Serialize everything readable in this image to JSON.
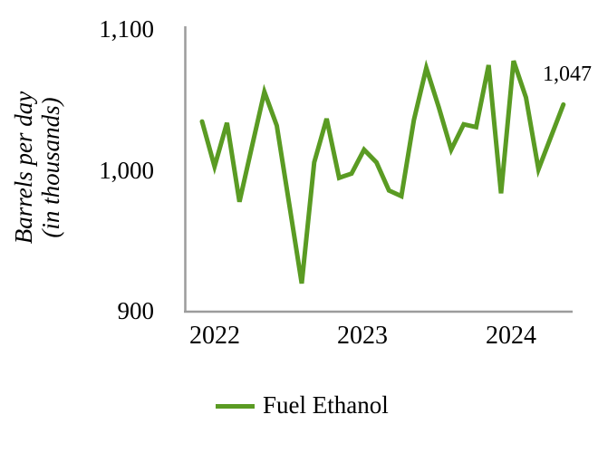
{
  "chart_data": {
    "type": "line",
    "title": "",
    "ylabel": "Barrels per day (in thousands)",
    "ylabel_lines": [
      "Barrels per day",
      "(in thousands)"
    ],
    "ylim": [
      900,
      1100
    ],
    "y_tick_labels": [
      "1,100",
      "1,000",
      "900"
    ],
    "y_tick_values": [
      1100,
      1000,
      900
    ],
    "x_tick_labels": [
      "2022",
      "2023",
      "2024"
    ],
    "x": [
      "Jan 2022",
      "Feb 2022",
      "Mar 2022",
      "Apr 2022",
      "May 2022",
      "Jun 2022",
      "Jul 2022",
      "Aug 2022",
      "Sep 2022",
      "Oct 2022",
      "Nov 2022",
      "Dec 2022",
      "Jan 2023",
      "Feb 2023",
      "Mar 2023",
      "Apr 2023",
      "May 2023",
      "Jun 2023",
      "Jul 2023",
      "Aug 2023",
      "Sep 2023",
      "Oct 2023",
      "Nov 2023",
      "Dec 2023",
      "Jan 2024",
      "Feb 2024",
      "Mar 2024",
      "Apr 2024",
      "May 2024",
      "Jun 2024"
    ],
    "series": [
      {
        "name": "Fuel Ethanol",
        "color": "#5A9B23",
        "values": [
          1035,
          1003,
          1034,
          978,
          1017,
          1056,
          1032,
          976,
          920,
          1006,
          1037,
          995,
          998,
          1015,
          1006,
          986,
          982,
          1036,
          1073,
          1045,
          1015,
          1033,
          1031,
          1075,
          984,
          1078,
          1052,
          1001,
          1024,
          1047
        ]
      }
    ],
    "last_point_label": "1,047",
    "grid": false,
    "legend_position": "bottom-left"
  },
  "legend": {
    "label": "Fuel Ethanol",
    "swatch_color": "#5A9B23"
  },
  "axes": {
    "color": "#9C9C9C"
  }
}
